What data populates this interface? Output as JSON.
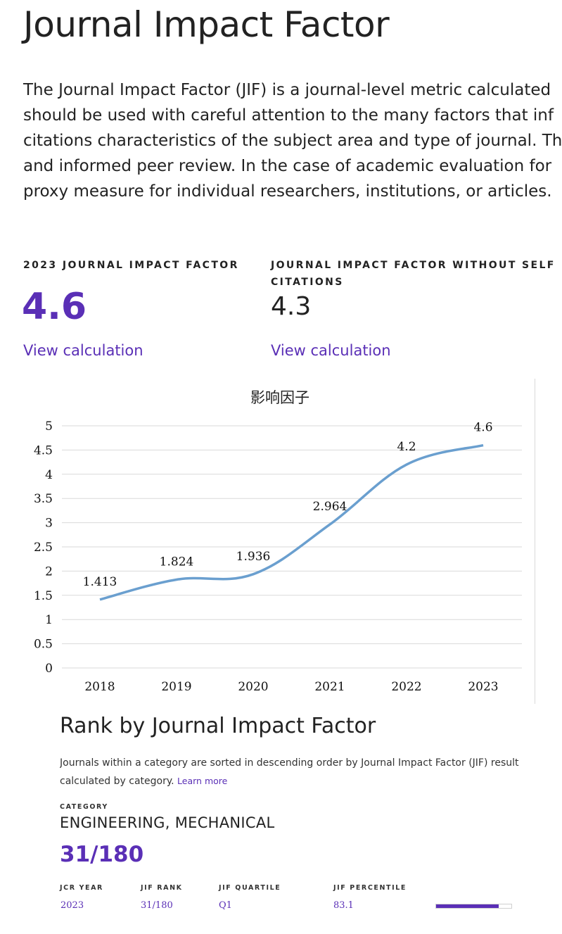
{
  "page": {
    "title": "Journal Impact Factor",
    "description_lines": [
      "The Journal Impact Factor (JIF) is a journal-level metric calculated",
      "should be used with careful attention to the many factors that inf",
      "citations characteristics of the subject area and type of journal. Th",
      "and informed peer review. In the case of academic evaluation for",
      "proxy measure for individual researchers, institutions, or articles."
    ]
  },
  "metrics": {
    "jif": {
      "label": "2023 JOURNAL IMPACT FACTOR",
      "value": "4.6",
      "link": "View calculation"
    },
    "jif_no_self": {
      "label_line1": "JOURNAL IMPACT FACTOR WITHOUT SELF",
      "label_line2": "CITATIONS",
      "value": "4.3",
      "link": "View calculation"
    }
  },
  "colors": {
    "accent": "#5a2fb6",
    "line": "#6a9fcf"
  },
  "chart_data": {
    "type": "line",
    "title": "影响因子",
    "categories": [
      "2018",
      "2019",
      "2020",
      "2021",
      "2022",
      "2023"
    ],
    "series": [
      {
        "values": [
          1.413,
          1.824,
          1.936,
          2.964,
          4.2,
          4.6
        ],
        "labels": [
          "1.413",
          "1.824",
          "1.936",
          "2.964",
          "4.2",
          "4.6"
        ]
      }
    ],
    "yticks": [
      "0",
      "0.5",
      "1",
      "1.5",
      "2",
      "2.5",
      "3",
      "3.5",
      "4",
      "4.5",
      "5"
    ],
    "ylim": [
      0,
      5
    ],
    "grid": true,
    "xlabel": "",
    "ylabel": ""
  },
  "rank": {
    "title": "Rank by Journal Impact Factor",
    "desc_line1": "Journals within a category are sorted in descending order by Journal Impact Factor (JIF) resultin",
    "desc_line2": "calculated by category.",
    "learn_more": "Learn more",
    "category_label": "CATEGORY",
    "category": "ENGINEERING, MECHANICAL",
    "rank_value": "31/180",
    "table": {
      "headers": [
        "JCR YEAR",
        "JIF RANK",
        "JIF QUARTILE",
        "JIF PERCENTILE"
      ],
      "values": [
        "2023",
        "31/180",
        "Q1",
        "83.1"
      ]
    },
    "percentile_fill": 83.1
  }
}
